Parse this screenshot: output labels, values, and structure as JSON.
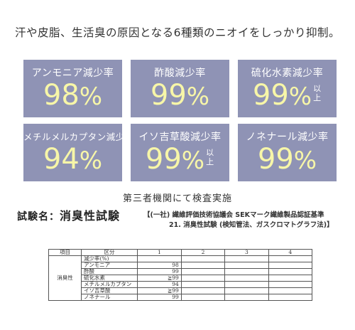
{
  "headline": "汗や皮脂、生活臭の原因となる6種類のニオイをしっかり抑制。",
  "cards": [
    {
      "label": "アンモニア減少率",
      "value": "98",
      "unit": "%",
      "suffix_top": "",
      "suffix_bottom": ""
    },
    {
      "label": "酢酸減少率",
      "value": "99",
      "unit": "%",
      "suffix_top": "",
      "suffix_bottom": ""
    },
    {
      "label": "硫化水素減少率",
      "value": "99",
      "unit": "%",
      "suffix_top": "以",
      "suffix_bottom": "上"
    },
    {
      "label": "メチルメルカプタン減少率",
      "value": "94",
      "unit": "%",
      "suffix_top": "",
      "suffix_bottom": ""
    },
    {
      "label": "イソ吉草酸減少率",
      "value": "99",
      "unit": "%",
      "suffix_top": "以",
      "suffix_bottom": "上"
    },
    {
      "label": "ノネナール減少率",
      "value": "99",
      "unit": "%",
      "suffix_top": "",
      "suffix_bottom": ""
    }
  ],
  "subtitle": "第三者機関にて検査実施",
  "test": {
    "label": "試験名：",
    "name": "消臭性試験",
    "standard_line1": "【(一社) 繊維評価技術協議会 SEKマーク繊維製品認証基準",
    "standard_line2": "21. 消臭性試験 (検知管法、ガスクロマトグラフ法)】"
  },
  "table": {
    "headers": [
      "項目",
      "区分",
      "1",
      "2",
      "3",
      "4"
    ],
    "side_label": "消臭性",
    "rows": [
      {
        "name": "減少率(%)",
        "value": ""
      },
      {
        "name": "アンモニア",
        "value": "98"
      },
      {
        "name": "酢酸",
        "value": "99"
      },
      {
        "name": "硫化水素",
        "value": "≧99"
      },
      {
        "name": "メチルメルカプタン",
        "value": "94"
      },
      {
        "name": "イソ吉草酸",
        "value": "≧99"
      },
      {
        "name": "ノネナール",
        "value": "99"
      }
    ]
  }
}
